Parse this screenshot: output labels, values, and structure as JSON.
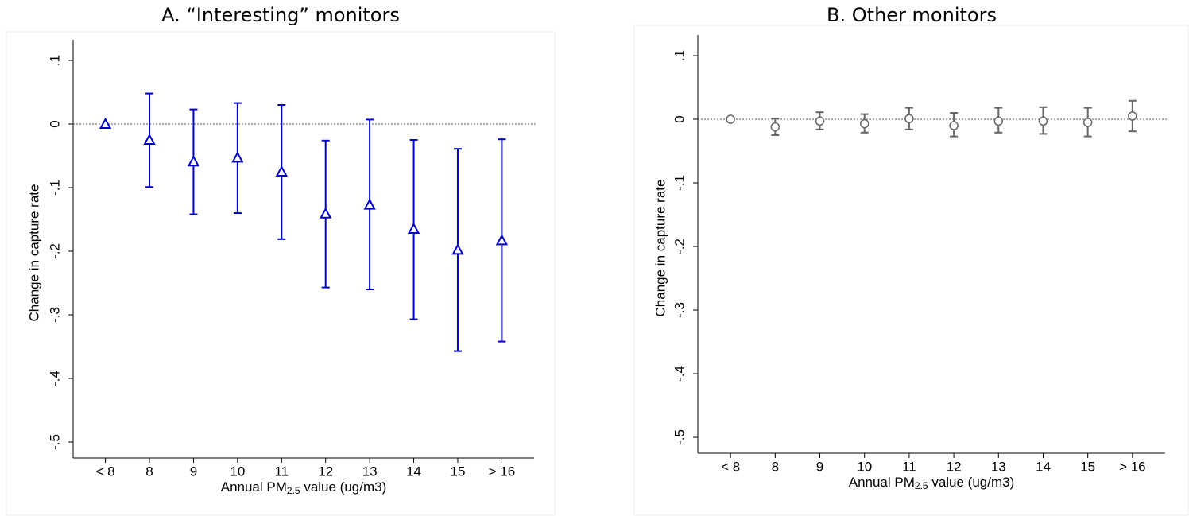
{
  "chart_data": [
    {
      "type": "errorbar",
      "title": "A. “Interesting” monitors",
      "xlabel": [
        "Annual PM",
        "2.5",
        " value (ug/m3)"
      ],
      "ylabel": "Change in capture rate",
      "categories": [
        "< 8",
        "8",
        "9",
        "10",
        "11",
        "12",
        "13",
        "14",
        "15",
        "> 16"
      ],
      "values": [
        0,
        -0.025,
        -0.059,
        -0.053,
        -0.075,
        -0.141,
        -0.127,
        -0.165,
        -0.198,
        -0.183
      ],
      "ci_low": [
        null,
        -0.099,
        -0.142,
        -0.14,
        -0.181,
        -0.257,
        -0.26,
        -0.307,
        -0.357,
        -0.342
      ],
      "ci_high": [
        null,
        0.048,
        0.023,
        0.033,
        0.03,
        -0.026,
        0.007,
        -0.025,
        -0.039,
        -0.024
      ],
      "color": "#0000cc",
      "marker": "triangle",
      "reference_line": 0,
      "ylim": [
        -0.525,
        0.12
      ],
      "yticks": [
        {
          "value": 0.1,
          "label": ".1"
        },
        0,
        {
          "value": -0.1,
          "label": "-.1"
        },
        {
          "value": -0.2,
          "label": "-.2"
        },
        {
          "value": -0.3,
          "label": "-.3"
        },
        {
          "value": -0.4,
          "label": "-.4"
        },
        {
          "value": -0.5,
          "label": "-.5"
        }
      ]
    },
    {
      "type": "errorbar",
      "title": "B. Other monitors",
      "xlabel": [
        "Annual PM",
        "2.5",
        " value (ug/m3)"
      ],
      "ylabel": "Change in capture rate",
      "categories": [
        "< 8",
        "8",
        "9",
        "10",
        "11",
        "12",
        "13",
        "14",
        "15",
        "> 16"
      ],
      "values": [
        0,
        -0.012,
        -0.003,
        -0.007,
        0.001,
        -0.01,
        -0.003,
        -0.003,
        -0.005,
        0.005
      ],
      "ci_low": [
        null,
        -0.025,
        -0.016,
        -0.021,
        -0.016,
        -0.027,
        -0.021,
        -0.023,
        -0.027,
        -0.019
      ],
      "ci_high": [
        null,
        0.001,
        0.011,
        0.008,
        0.018,
        0.01,
        0.018,
        0.019,
        0.018,
        0.029
      ],
      "color": "#666666",
      "marker": "circle",
      "reference_line": 0,
      "ylim": [
        -0.525,
        0.12
      ],
      "yticks": [
        {
          "value": 0.1,
          "label": ".1"
        },
        0,
        {
          "value": -0.1,
          "label": "-.1"
        },
        {
          "value": -0.2,
          "label": "-.2"
        },
        {
          "value": -0.3,
          "label": "-.3"
        },
        {
          "value": -0.4,
          "label": "-.4"
        },
        {
          "value": -0.5,
          "label": "-.5"
        }
      ]
    }
  ]
}
